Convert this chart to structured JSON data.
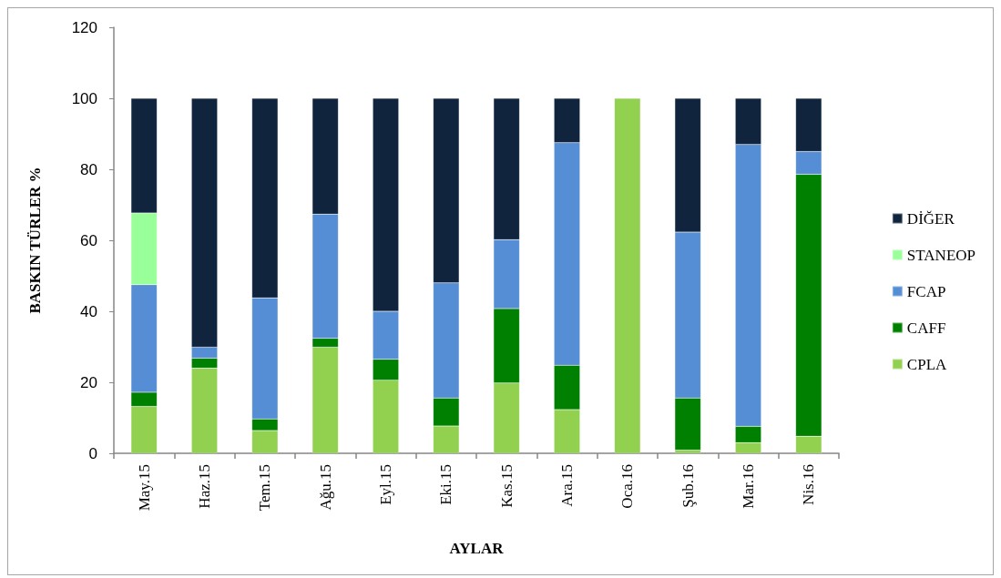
{
  "chart_data": {
    "type": "bar",
    "stacked": true,
    "xlabel": "AYLAR",
    "ylabel": "BASKIN TÜRLER %",
    "categories": [
      "May.15",
      "Haz.15",
      "Tem.15",
      "Ağu.15",
      "Eyl.15",
      "Eki.15",
      "Kas.15",
      "Ara.15",
      "Oca.16",
      "Şub.16",
      "Mar.16",
      "Nis.16"
    ],
    "series": [
      {
        "name": "CPLA",
        "color": "#92d050",
        "values": [
          13.2,
          24.0,
          6.4,
          29.9,
          20.6,
          7.7,
          19.8,
          12.3,
          100,
          0.9,
          3.0,
          4.8
        ]
      },
      {
        "name": "CAFF",
        "color": "#008000",
        "values": [
          4.0,
          2.8,
          3.3,
          2.5,
          5.9,
          7.9,
          21.0,
          12.5,
          null,
          14.7,
          4.6,
          73.8
        ]
      },
      {
        "name": "FCAP",
        "color": "#558ed5",
        "values": [
          30.3,
          3.1,
          34.1,
          35.0,
          13.5,
          32.4,
          19.4,
          62.7,
          null,
          46.7,
          79.4,
          6.4
        ]
      },
      {
        "name": "STANEOP",
        "color": "#99ff99",
        "values": [
          20.2,
          null,
          null,
          null,
          null,
          null,
          null,
          null,
          null,
          null,
          null,
          null
        ]
      },
      {
        "name": "DİĞER",
        "color": "#10243e",
        "values": [
          32.3,
          70.1,
          56.2,
          32.6,
          60.0,
          52.0,
          39.8,
          12.5,
          null,
          37.7,
          13.0,
          15.0
        ]
      }
    ],
    "ylim": [
      0,
      120
    ],
    "yticks": [
      0,
      20,
      40,
      60,
      80,
      100,
      120
    ],
    "grid": false,
    "legend": "right"
  }
}
